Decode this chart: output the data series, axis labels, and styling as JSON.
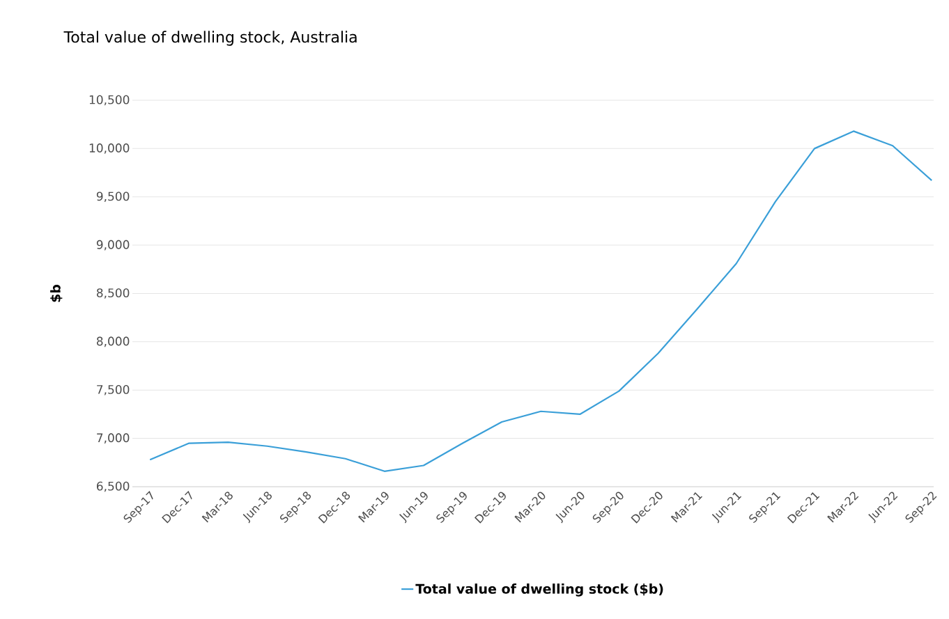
{
  "chart_data": {
    "type": "line",
    "title": "Total value of dwelling stock, Australia",
    "ylabel": "$b",
    "categories": [
      "Sep-17",
      "Dec-17",
      "Mar-18",
      "Jun-18",
      "Sep-18",
      "Dec-18",
      "Mar-19",
      "Jun-19",
      "Sep-19",
      "Dec-19",
      "Mar-20",
      "Jun-20",
      "Sep-20",
      "Dec-20",
      "Mar-21",
      "Jun-21",
      "Sep-21",
      "Dec-21",
      "Mar-22",
      "Jun-22",
      "Sep-22"
    ],
    "series": [
      {
        "name": "Total value of dwelling stock ($b)",
        "color": "#3a9fd8",
        "values": [
          6780,
          6950,
          6960,
          6920,
          6860,
          6790,
          6660,
          6720,
          6950,
          7170,
          7280,
          7250,
          7490,
          7880,
          8340,
          8810,
          9450,
          10000,
          10180,
          10030,
          9670
        ]
      }
    ],
    "ylim": [
      6500,
      10500
    ],
    "yticks": [
      {
        "value": 6500,
        "label": "6,500"
      },
      {
        "value": 7000,
        "label": "7,000"
      },
      {
        "value": 7500,
        "label": "7,500"
      },
      {
        "value": 8000,
        "label": "8,000"
      },
      {
        "value": 8500,
        "label": "8,500"
      },
      {
        "value": 9000,
        "label": "9,000"
      },
      {
        "value": 9500,
        "label": "9,500"
      },
      {
        "value": 10000,
        "label": "10,000"
      },
      {
        "value": 10500,
        "label": "10,500"
      }
    ],
    "grid": "y",
    "legend": "bottom"
  }
}
